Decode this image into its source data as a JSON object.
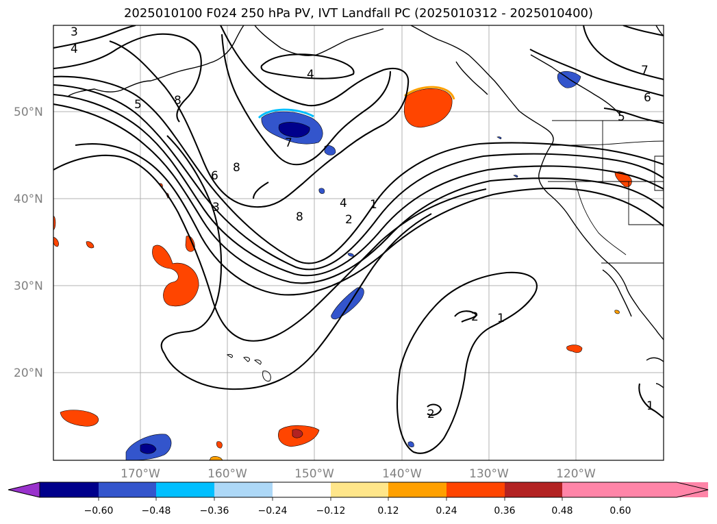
{
  "title": "2025010100 F024 250 hPa PV, IVT Landfall PC (2025010312 - 2025010400)",
  "lat_labels": [
    "50°N",
    "40°N",
    "30°N",
    "20°N"
  ],
  "lon_labels": [
    "170°W",
    "160°W",
    "150°W",
    "140°W",
    "130°W",
    "120°W"
  ],
  "pv_contour_labels": [
    "3",
    "4",
    "5",
    "8",
    "4",
    "7",
    "8",
    "6",
    "3",
    "8",
    "4",
    "2",
    "1",
    "7",
    "6",
    "5",
    "2",
    "1",
    "2",
    "1"
  ],
  "colorbar": {
    "ticks": [
      "−0.60",
      "−0.48",
      "−0.36",
      "−0.24",
      "−0.12",
      "0.12",
      "0.24",
      "0.36",
      "0.48",
      "0.60"
    ],
    "colors": [
      "#9932cc",
      "#00008b",
      "#3355cc",
      "#00bfff",
      "#add8f7",
      "#ffffff",
      "#ffe68a",
      "#ffa000",
      "#ff4500",
      "#b22222",
      "#ff85a8"
    ]
  },
  "map": {
    "projection": "PlateCarree",
    "lon_range": [
      -180,
      -110
    ],
    "lat_range": [
      10,
      60
    ],
    "gridlines": true
  }
}
